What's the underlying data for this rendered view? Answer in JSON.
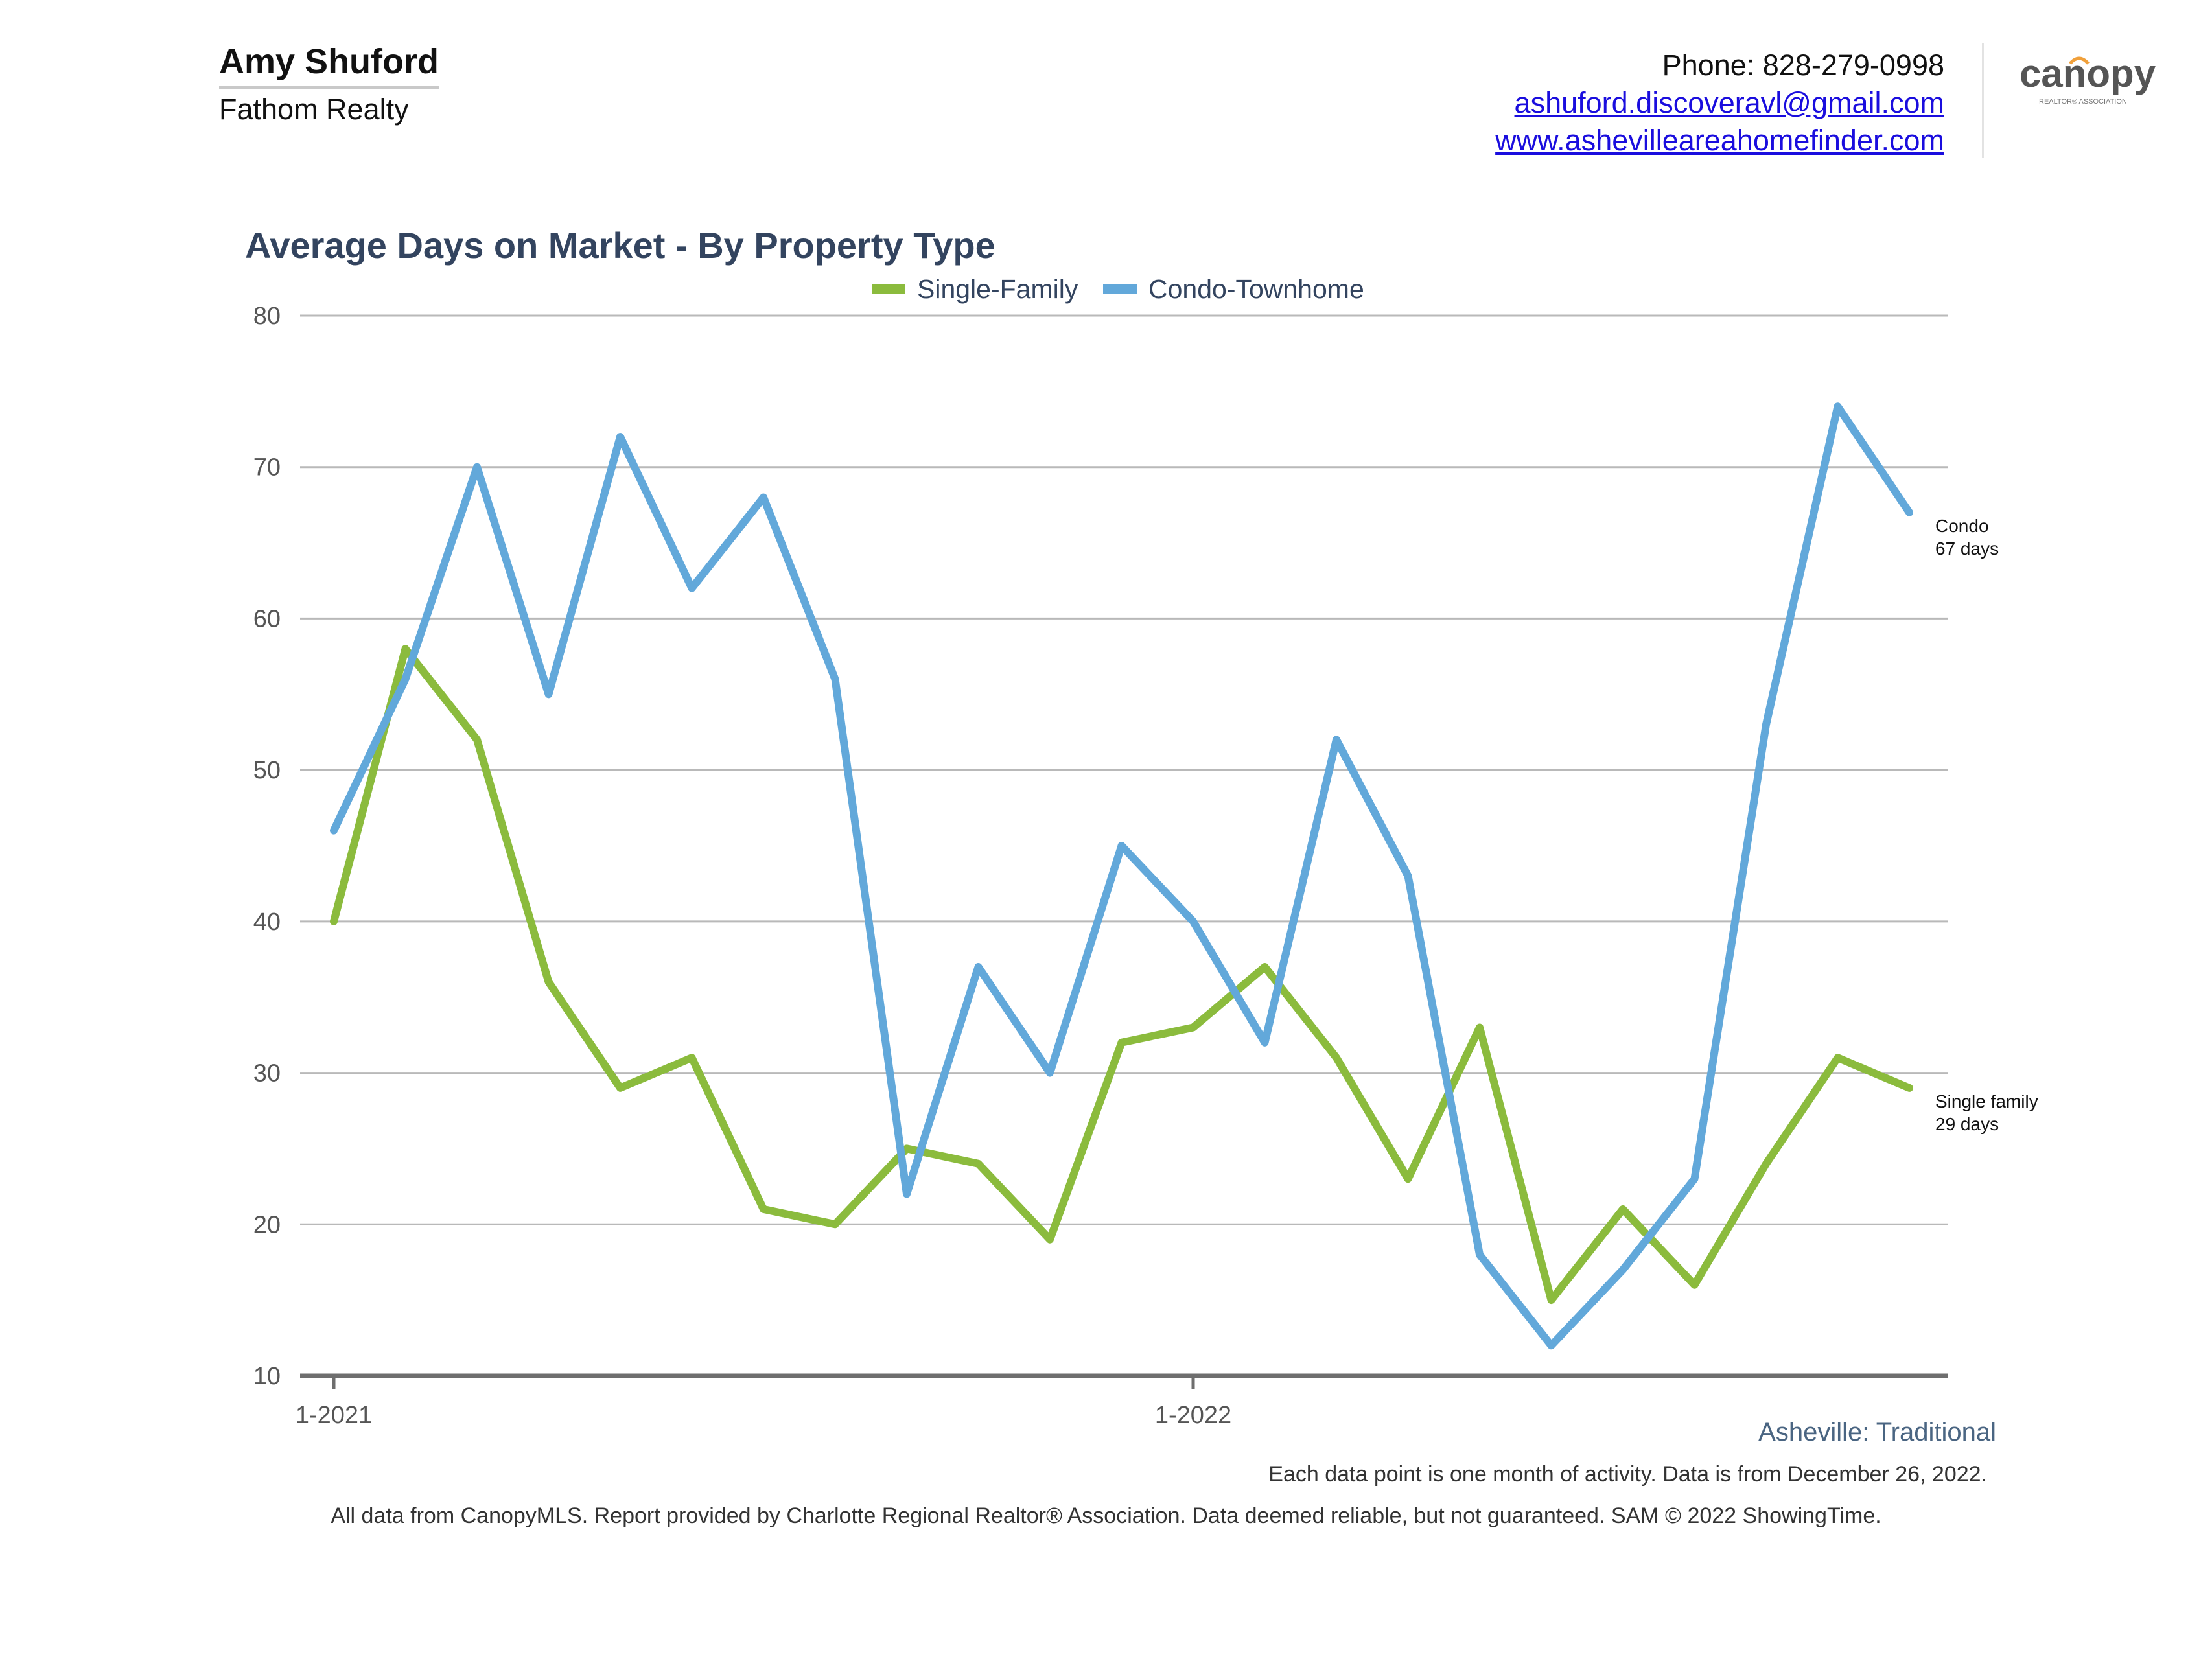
{
  "header": {
    "agent_name": "Amy Shuford",
    "company": "Fathom Realty",
    "phone": "Phone: 828-279-0998",
    "email": "ashuford.discoveravl@gmail.com",
    "website": "www.ashevilleareahomefinder.com",
    "logo_text": "canopy",
    "logo_subtext": "REALTOR® ASSOCIATION"
  },
  "chart_data": {
    "type": "line",
    "title": "Average Days on Market - By Property Type",
    "xlabel": "",
    "ylabel": "",
    "ylim": [
      10,
      80
    ],
    "yticks": [
      10,
      20,
      30,
      40,
      50,
      60,
      70,
      80
    ],
    "x_tick_labels": [
      {
        "index": 0,
        "label": "1-2021"
      },
      {
        "index": 12,
        "label": "1-2022"
      }
    ],
    "x": [
      "1-2021",
      "2-2021",
      "3-2021",
      "4-2021",
      "5-2021",
      "6-2021",
      "7-2021",
      "8-2021",
      "9-2021",
      "10-2021",
      "11-2021",
      "12-2021",
      "1-2022",
      "2-2022",
      "3-2022",
      "4-2022",
      "5-2022",
      "6-2022",
      "7-2022",
      "8-2022",
      "9-2022",
      "10-2022",
      "11-2022",
      "12-2022"
    ],
    "grid": true,
    "legend_position": "top-center",
    "series": [
      {
        "name": "Single-Family",
        "color": "#8bbb3d",
        "values": [
          40,
          58,
          52,
          36,
          29,
          31,
          21,
          20,
          25,
          24,
          19,
          32,
          33,
          37,
          31,
          23,
          33,
          15,
          21,
          16,
          24,
          31,
          29,
          null
        ]
      },
      {
        "name": "Condo-Townhome",
        "color": "#62a8da",
        "values": [
          46,
          56,
          70,
          55,
          72,
          62,
          68,
          56,
          22,
          37,
          30,
          45,
          40,
          32,
          52,
          43,
          18,
          12,
          17,
          23,
          53,
          74,
          67,
          null
        ]
      }
    ],
    "annotations": [
      {
        "series": "Condo-Townhome",
        "lines": [
          "Condo",
          "67 days"
        ]
      },
      {
        "series": "Single-Family",
        "lines": [
          "Single family",
          "29 days"
        ]
      }
    ]
  },
  "footer": {
    "market": "Asheville: Traditional",
    "note": "Each data point is one month of activity. Data is from December 26, 2022.",
    "disclaimer": "All data from CanopyMLS. Report provided by Charlotte Regional Realtor® Association. Data deemed reliable, but not guaranteed. SAM © 2022 ShowingTime."
  }
}
